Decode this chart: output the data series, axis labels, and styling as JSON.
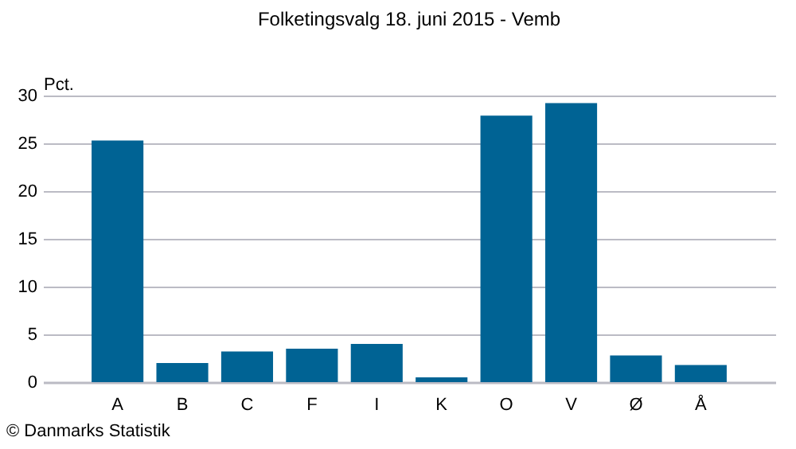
{
  "chart_data": {
    "type": "bar",
    "title": "Folketingsvalg 18. juni 2015 - Vemb",
    "ylabel": "Pct.",
    "categories": [
      "A",
      "B",
      "C",
      "F",
      "I",
      "K",
      "O",
      "V",
      "Ø",
      "Å"
    ],
    "values": [
      25.3,
      2.0,
      3.2,
      3.5,
      4.0,
      0.5,
      27.9,
      29.2,
      2.8,
      1.8
    ],
    "color": "#006394",
    "ylim": [
      0,
      30
    ],
    "yticks": [
      0,
      5,
      10,
      15,
      20,
      25,
      30
    ],
    "grid": "y",
    "annotations": [
      "© Danmarks Statistik"
    ]
  }
}
